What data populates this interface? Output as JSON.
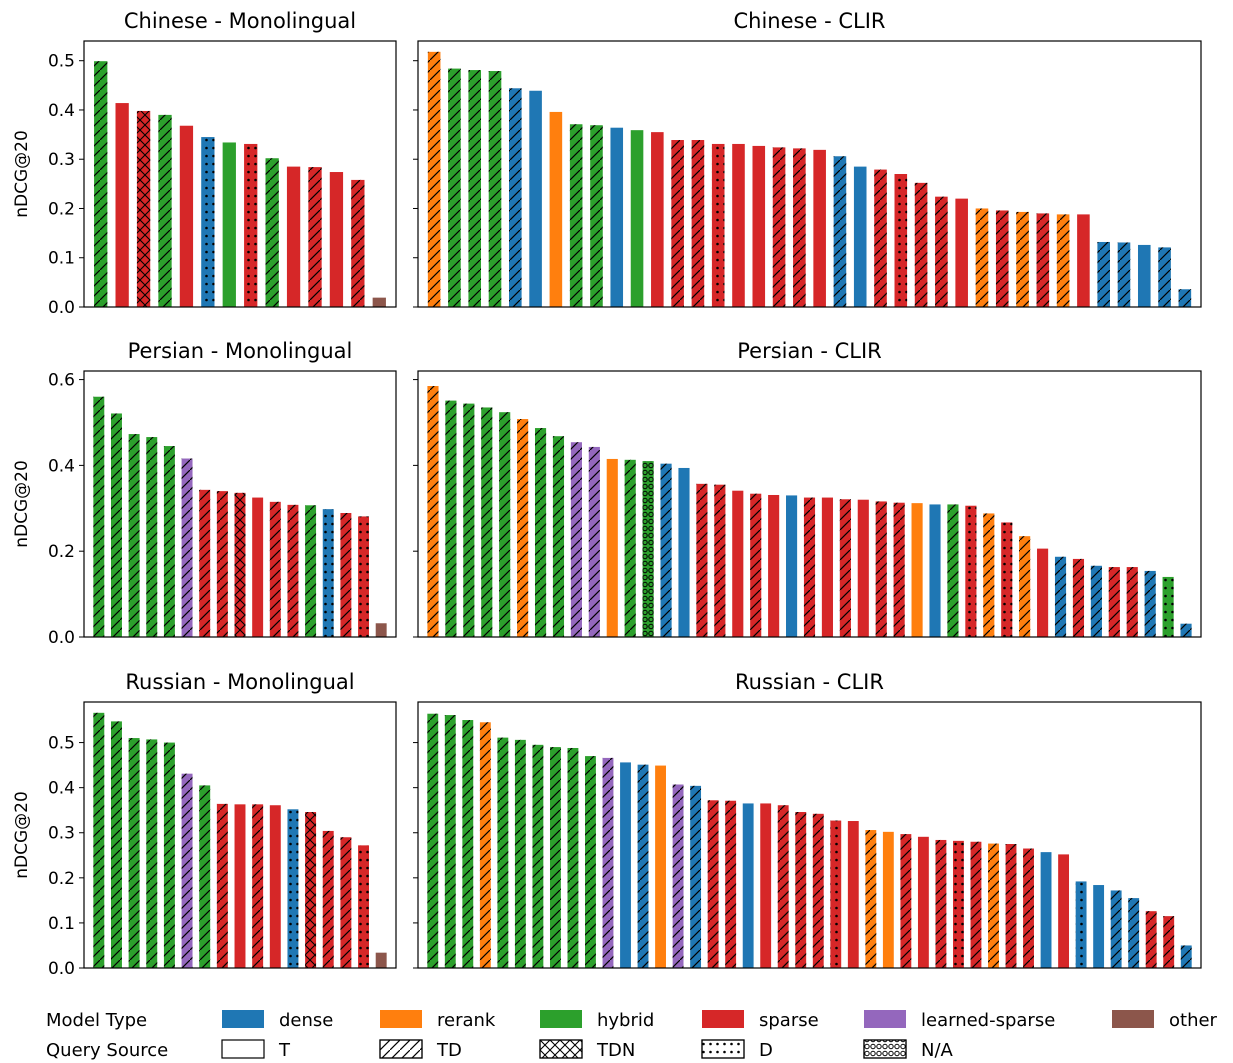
{
  "colors": {
    "dense": "#1f77b4",
    "rerank": "#ff7f0e",
    "hybrid": "#2ca02c",
    "sparse": "#d62728",
    "learned-sparse": "#9467bd",
    "other": "#8c564b"
  },
  "chart_data": [
    {
      "type": "bar",
      "title": "Chinese - Monolingual",
      "ylabel": "nDCG@20",
      "ylim": [
        0,
        0.54
      ],
      "yticks": [
        "0.0",
        "0.1",
        "0.2",
        "0.3",
        "0.4",
        "0.5"
      ],
      "bars": [
        {
          "value": 0.499,
          "model": "hybrid",
          "query": "TD"
        },
        {
          "value": 0.414,
          "model": "sparse",
          "query": "T"
        },
        {
          "value": 0.398,
          "model": "sparse",
          "query": "TDN"
        },
        {
          "value": 0.39,
          "model": "hybrid",
          "query": "TD"
        },
        {
          "value": 0.368,
          "model": "sparse",
          "query": "T"
        },
        {
          "value": 0.345,
          "model": "dense",
          "query": "D"
        },
        {
          "value": 0.334,
          "model": "hybrid",
          "query": "T"
        },
        {
          "value": 0.331,
          "model": "sparse",
          "query": "D"
        },
        {
          "value": 0.302,
          "model": "hybrid",
          "query": "TD"
        },
        {
          "value": 0.285,
          "model": "sparse",
          "query": "T"
        },
        {
          "value": 0.284,
          "model": "sparse",
          "query": "TD"
        },
        {
          "value": 0.274,
          "model": "sparse",
          "query": "T"
        },
        {
          "value": 0.258,
          "model": "sparse",
          "query": "TD"
        },
        {
          "value": 0.019,
          "model": "other",
          "query": "T"
        }
      ]
    },
    {
      "type": "bar",
      "title": "Chinese - CLIR",
      "ylabel": "",
      "ylim": [
        0,
        0.54
      ],
      "yticks": [],
      "bars": [
        {
          "value": 0.518,
          "model": "rerank",
          "query": "TD"
        },
        {
          "value": 0.484,
          "model": "hybrid",
          "query": "TD"
        },
        {
          "value": 0.481,
          "model": "hybrid",
          "query": "TD"
        },
        {
          "value": 0.479,
          "model": "hybrid",
          "query": "TD"
        },
        {
          "value": 0.444,
          "model": "dense",
          "query": "TD"
        },
        {
          "value": 0.439,
          "model": "dense",
          "query": "T"
        },
        {
          "value": 0.396,
          "model": "rerank",
          "query": "T"
        },
        {
          "value": 0.371,
          "model": "hybrid",
          "query": "TD"
        },
        {
          "value": 0.369,
          "model": "hybrid",
          "query": "TD"
        },
        {
          "value": 0.364,
          "model": "dense",
          "query": "T"
        },
        {
          "value": 0.359,
          "model": "hybrid",
          "query": "T"
        },
        {
          "value": 0.355,
          "model": "sparse",
          "query": "T"
        },
        {
          "value": 0.339,
          "model": "sparse",
          "query": "TD"
        },
        {
          "value": 0.339,
          "model": "sparse",
          "query": "TD"
        },
        {
          "value": 0.331,
          "model": "sparse",
          "query": "D"
        },
        {
          "value": 0.331,
          "model": "sparse",
          "query": "T"
        },
        {
          "value": 0.327,
          "model": "sparse",
          "query": "T"
        },
        {
          "value": 0.324,
          "model": "sparse",
          "query": "TD"
        },
        {
          "value": 0.322,
          "model": "sparse",
          "query": "TD"
        },
        {
          "value": 0.319,
          "model": "sparse",
          "query": "T"
        },
        {
          "value": 0.306,
          "model": "dense",
          "query": "TD"
        },
        {
          "value": 0.285,
          "model": "dense",
          "query": "T"
        },
        {
          "value": 0.279,
          "model": "sparse",
          "query": "TD"
        },
        {
          "value": 0.27,
          "model": "sparse",
          "query": "D"
        },
        {
          "value": 0.252,
          "model": "sparse",
          "query": "TD"
        },
        {
          "value": 0.224,
          "model": "sparse",
          "query": "TD"
        },
        {
          "value": 0.22,
          "model": "sparse",
          "query": "T"
        },
        {
          "value": 0.2,
          "model": "rerank",
          "query": "TD"
        },
        {
          "value": 0.196,
          "model": "sparse",
          "query": "TD"
        },
        {
          "value": 0.193,
          "model": "rerank",
          "query": "TD"
        },
        {
          "value": 0.19,
          "model": "sparse",
          "query": "TD"
        },
        {
          "value": 0.188,
          "model": "rerank",
          "query": "TD"
        },
        {
          "value": 0.188,
          "model": "sparse",
          "query": "T"
        },
        {
          "value": 0.132,
          "model": "dense",
          "query": "TD"
        },
        {
          "value": 0.131,
          "model": "dense",
          "query": "TD"
        },
        {
          "value": 0.126,
          "model": "dense",
          "query": "T"
        },
        {
          "value": 0.121,
          "model": "dense",
          "query": "TD"
        },
        {
          "value": 0.036,
          "model": "dense",
          "query": "TD"
        }
      ]
    },
    {
      "type": "bar",
      "title": "Persian - Monolingual",
      "ylabel": "nDCG@20",
      "ylim": [
        0,
        0.62
      ],
      "yticks": [
        "0.0",
        "0.2",
        "0.4",
        "0.6"
      ],
      "bars": [
        {
          "value": 0.56,
          "model": "hybrid",
          "query": "TD"
        },
        {
          "value": 0.521,
          "model": "hybrid",
          "query": "TD"
        },
        {
          "value": 0.473,
          "model": "hybrid",
          "query": "TD"
        },
        {
          "value": 0.466,
          "model": "hybrid",
          "query": "TD"
        },
        {
          "value": 0.445,
          "model": "hybrid",
          "query": "TD"
        },
        {
          "value": 0.416,
          "model": "learned-sparse",
          "query": "TD"
        },
        {
          "value": 0.343,
          "model": "sparse",
          "query": "TD"
        },
        {
          "value": 0.34,
          "model": "sparse",
          "query": "TD"
        },
        {
          "value": 0.336,
          "model": "sparse",
          "query": "TDN"
        },
        {
          "value": 0.325,
          "model": "sparse",
          "query": "T"
        },
        {
          "value": 0.315,
          "model": "sparse",
          "query": "TD"
        },
        {
          "value": 0.308,
          "model": "sparse",
          "query": "TD"
        },
        {
          "value": 0.307,
          "model": "hybrid",
          "query": "TD"
        },
        {
          "value": 0.298,
          "model": "dense",
          "query": "D"
        },
        {
          "value": 0.289,
          "model": "sparse",
          "query": "TD"
        },
        {
          "value": 0.281,
          "model": "sparse",
          "query": "D"
        },
        {
          "value": 0.032,
          "model": "other",
          "query": "T"
        }
      ]
    },
    {
      "type": "bar",
      "title": "Persian - CLIR",
      "ylabel": "",
      "ylim": [
        0,
        0.62
      ],
      "yticks": [],
      "bars": [
        {
          "value": 0.585,
          "model": "rerank",
          "query": "TD"
        },
        {
          "value": 0.551,
          "model": "hybrid",
          "query": "TD"
        },
        {
          "value": 0.544,
          "model": "hybrid",
          "query": "TD"
        },
        {
          "value": 0.535,
          "model": "hybrid",
          "query": "TD"
        },
        {
          "value": 0.524,
          "model": "hybrid",
          "query": "TD"
        },
        {
          "value": 0.508,
          "model": "rerank",
          "query": "TD"
        },
        {
          "value": 0.487,
          "model": "hybrid",
          "query": "TD"
        },
        {
          "value": 0.468,
          "model": "hybrid",
          "query": "TD"
        },
        {
          "value": 0.454,
          "model": "learned-sparse",
          "query": "TD"
        },
        {
          "value": 0.443,
          "model": "learned-sparse",
          "query": "TD"
        },
        {
          "value": 0.415,
          "model": "rerank",
          "query": "T"
        },
        {
          "value": 0.413,
          "model": "hybrid",
          "query": "TD"
        },
        {
          "value": 0.41,
          "model": "hybrid",
          "query": "N/A"
        },
        {
          "value": 0.404,
          "model": "dense",
          "query": "TD"
        },
        {
          "value": 0.394,
          "model": "dense",
          "query": "T"
        },
        {
          "value": 0.357,
          "model": "sparse",
          "query": "TD"
        },
        {
          "value": 0.355,
          "model": "sparse",
          "query": "TD"
        },
        {
          "value": 0.341,
          "model": "sparse",
          "query": "T"
        },
        {
          "value": 0.334,
          "model": "sparse",
          "query": "TD"
        },
        {
          "value": 0.331,
          "model": "sparse",
          "query": "T"
        },
        {
          "value": 0.33,
          "model": "dense",
          "query": "T"
        },
        {
          "value": 0.325,
          "model": "sparse",
          "query": "TD"
        },
        {
          "value": 0.325,
          "model": "sparse",
          "query": "T"
        },
        {
          "value": 0.321,
          "model": "sparse",
          "query": "TD"
        },
        {
          "value": 0.32,
          "model": "sparse",
          "query": "T"
        },
        {
          "value": 0.316,
          "model": "sparse",
          "query": "TD"
        },
        {
          "value": 0.313,
          "model": "sparse",
          "query": "TD"
        },
        {
          "value": 0.312,
          "model": "rerank",
          "query": "T"
        },
        {
          "value": 0.309,
          "model": "dense",
          "query": "T"
        },
        {
          "value": 0.309,
          "model": "hybrid",
          "query": "TD"
        },
        {
          "value": 0.306,
          "model": "sparse",
          "query": "D"
        },
        {
          "value": 0.288,
          "model": "rerank",
          "query": "TD"
        },
        {
          "value": 0.267,
          "model": "sparse",
          "query": "D"
        },
        {
          "value": 0.235,
          "model": "rerank",
          "query": "TD"
        },
        {
          "value": 0.206,
          "model": "sparse",
          "query": "T"
        },
        {
          "value": 0.187,
          "model": "dense",
          "query": "TD"
        },
        {
          "value": 0.182,
          "model": "sparse",
          "query": "TD"
        },
        {
          "value": 0.166,
          "model": "dense",
          "query": "TD"
        },
        {
          "value": 0.163,
          "model": "sparse",
          "query": "TD"
        },
        {
          "value": 0.163,
          "model": "sparse",
          "query": "TD"
        },
        {
          "value": 0.154,
          "model": "dense",
          "query": "TD"
        },
        {
          "value": 0.14,
          "model": "hybrid",
          "query": "D"
        },
        {
          "value": 0.031,
          "model": "dense",
          "query": "TD"
        }
      ]
    },
    {
      "type": "bar",
      "title": "Russian - Monolingual",
      "ylabel": "nDCG@20",
      "ylim": [
        0,
        0.59
      ],
      "yticks": [
        "0.0",
        "0.1",
        "0.2",
        "0.3",
        "0.4",
        "0.5"
      ],
      "bars": [
        {
          "value": 0.566,
          "model": "hybrid",
          "query": "TD"
        },
        {
          "value": 0.547,
          "model": "hybrid",
          "query": "TD"
        },
        {
          "value": 0.51,
          "model": "hybrid",
          "query": "TD"
        },
        {
          "value": 0.507,
          "model": "hybrid",
          "query": "TD"
        },
        {
          "value": 0.5,
          "model": "hybrid",
          "query": "TD"
        },
        {
          "value": 0.431,
          "model": "learned-sparse",
          "query": "TD"
        },
        {
          "value": 0.405,
          "model": "hybrid",
          "query": "TD"
        },
        {
          "value": 0.364,
          "model": "sparse",
          "query": "TD"
        },
        {
          "value": 0.363,
          "model": "sparse",
          "query": "T"
        },
        {
          "value": 0.363,
          "model": "sparse",
          "query": "TD"
        },
        {
          "value": 0.361,
          "model": "sparse",
          "query": "T"
        },
        {
          "value": 0.352,
          "model": "dense",
          "query": "D"
        },
        {
          "value": 0.346,
          "model": "sparse",
          "query": "TDN"
        },
        {
          "value": 0.304,
          "model": "sparse",
          "query": "TD"
        },
        {
          "value": 0.29,
          "model": "sparse",
          "query": "TD"
        },
        {
          "value": 0.272,
          "model": "sparse",
          "query": "D"
        },
        {
          "value": 0.034,
          "model": "other",
          "query": "T"
        }
      ]
    },
    {
      "type": "bar",
      "title": "Russian - CLIR",
      "ylabel": "",
      "ylim": [
        0,
        0.59
      ],
      "yticks": [],
      "bars": [
        {
          "value": 0.564,
          "model": "hybrid",
          "query": "TD"
        },
        {
          "value": 0.561,
          "model": "hybrid",
          "query": "TD"
        },
        {
          "value": 0.55,
          "model": "hybrid",
          "query": "TD"
        },
        {
          "value": 0.545,
          "model": "rerank",
          "query": "TD"
        },
        {
          "value": 0.511,
          "model": "hybrid",
          "query": "TD"
        },
        {
          "value": 0.506,
          "model": "hybrid",
          "query": "TD"
        },
        {
          "value": 0.495,
          "model": "hybrid",
          "query": "TD"
        },
        {
          "value": 0.49,
          "model": "hybrid",
          "query": "TD"
        },
        {
          "value": 0.488,
          "model": "hybrid",
          "query": "TD"
        },
        {
          "value": 0.47,
          "model": "hybrid",
          "query": "TD"
        },
        {
          "value": 0.466,
          "model": "learned-sparse",
          "query": "TD"
        },
        {
          "value": 0.456,
          "model": "dense",
          "query": "T"
        },
        {
          "value": 0.451,
          "model": "dense",
          "query": "TD"
        },
        {
          "value": 0.449,
          "model": "rerank",
          "query": "T"
        },
        {
          "value": 0.407,
          "model": "learned-sparse",
          "query": "TD"
        },
        {
          "value": 0.404,
          "model": "dense",
          "query": "TD"
        },
        {
          "value": 0.372,
          "model": "sparse",
          "query": "TD"
        },
        {
          "value": 0.371,
          "model": "sparse",
          "query": "TD"
        },
        {
          "value": 0.365,
          "model": "dense",
          "query": "T"
        },
        {
          "value": 0.365,
          "model": "sparse",
          "query": "T"
        },
        {
          "value": 0.361,
          "model": "sparse",
          "query": "TD"
        },
        {
          "value": 0.346,
          "model": "sparse",
          "query": "TD"
        },
        {
          "value": 0.342,
          "model": "sparse",
          "query": "TD"
        },
        {
          "value": 0.327,
          "model": "sparse",
          "query": "D"
        },
        {
          "value": 0.326,
          "model": "sparse",
          "query": "T"
        },
        {
          "value": 0.306,
          "model": "rerank",
          "query": "TD"
        },
        {
          "value": 0.302,
          "model": "rerank",
          "query": "T"
        },
        {
          "value": 0.297,
          "model": "sparse",
          "query": "TD"
        },
        {
          "value": 0.291,
          "model": "sparse",
          "query": "T"
        },
        {
          "value": 0.284,
          "model": "sparse",
          "query": "TD"
        },
        {
          "value": 0.282,
          "model": "sparse",
          "query": "D"
        },
        {
          "value": 0.28,
          "model": "sparse",
          "query": "TD"
        },
        {
          "value": 0.276,
          "model": "rerank",
          "query": "TD"
        },
        {
          "value": 0.275,
          "model": "sparse",
          "query": "TD"
        },
        {
          "value": 0.265,
          "model": "sparse",
          "query": "TD"
        },
        {
          "value": 0.257,
          "model": "dense",
          "query": "T"
        },
        {
          "value": 0.252,
          "model": "sparse",
          "query": "T"
        },
        {
          "value": 0.192,
          "model": "dense",
          "query": "D"
        },
        {
          "value": 0.184,
          "model": "dense",
          "query": "T"
        },
        {
          "value": 0.172,
          "model": "dense",
          "query": "TD"
        },
        {
          "value": 0.155,
          "model": "dense",
          "query": "TD"
        },
        {
          "value": 0.126,
          "model": "sparse",
          "query": "TD"
        },
        {
          "value": 0.115,
          "model": "sparse",
          "query": "TD"
        },
        {
          "value": 0.05,
          "model": "dense",
          "query": "TD"
        }
      ]
    }
  ],
  "legend": {
    "model_type_label": "Model Type",
    "query_source_label": "Query Source",
    "model_types": [
      {
        "key": "dense",
        "label": "dense"
      },
      {
        "key": "rerank",
        "label": "rerank"
      },
      {
        "key": "hybrid",
        "label": "hybrid"
      },
      {
        "key": "sparse",
        "label": "sparse"
      },
      {
        "key": "learned-sparse",
        "label": "learned-sparse"
      },
      {
        "key": "other",
        "label": "other"
      }
    ],
    "query_sources": [
      {
        "key": "T",
        "label": "T"
      },
      {
        "key": "TD",
        "label": "TD"
      },
      {
        "key": "TDN",
        "label": "TDN"
      },
      {
        "key": "D",
        "label": "D"
      },
      {
        "key": "N/A",
        "label": "N/A"
      }
    ]
  }
}
